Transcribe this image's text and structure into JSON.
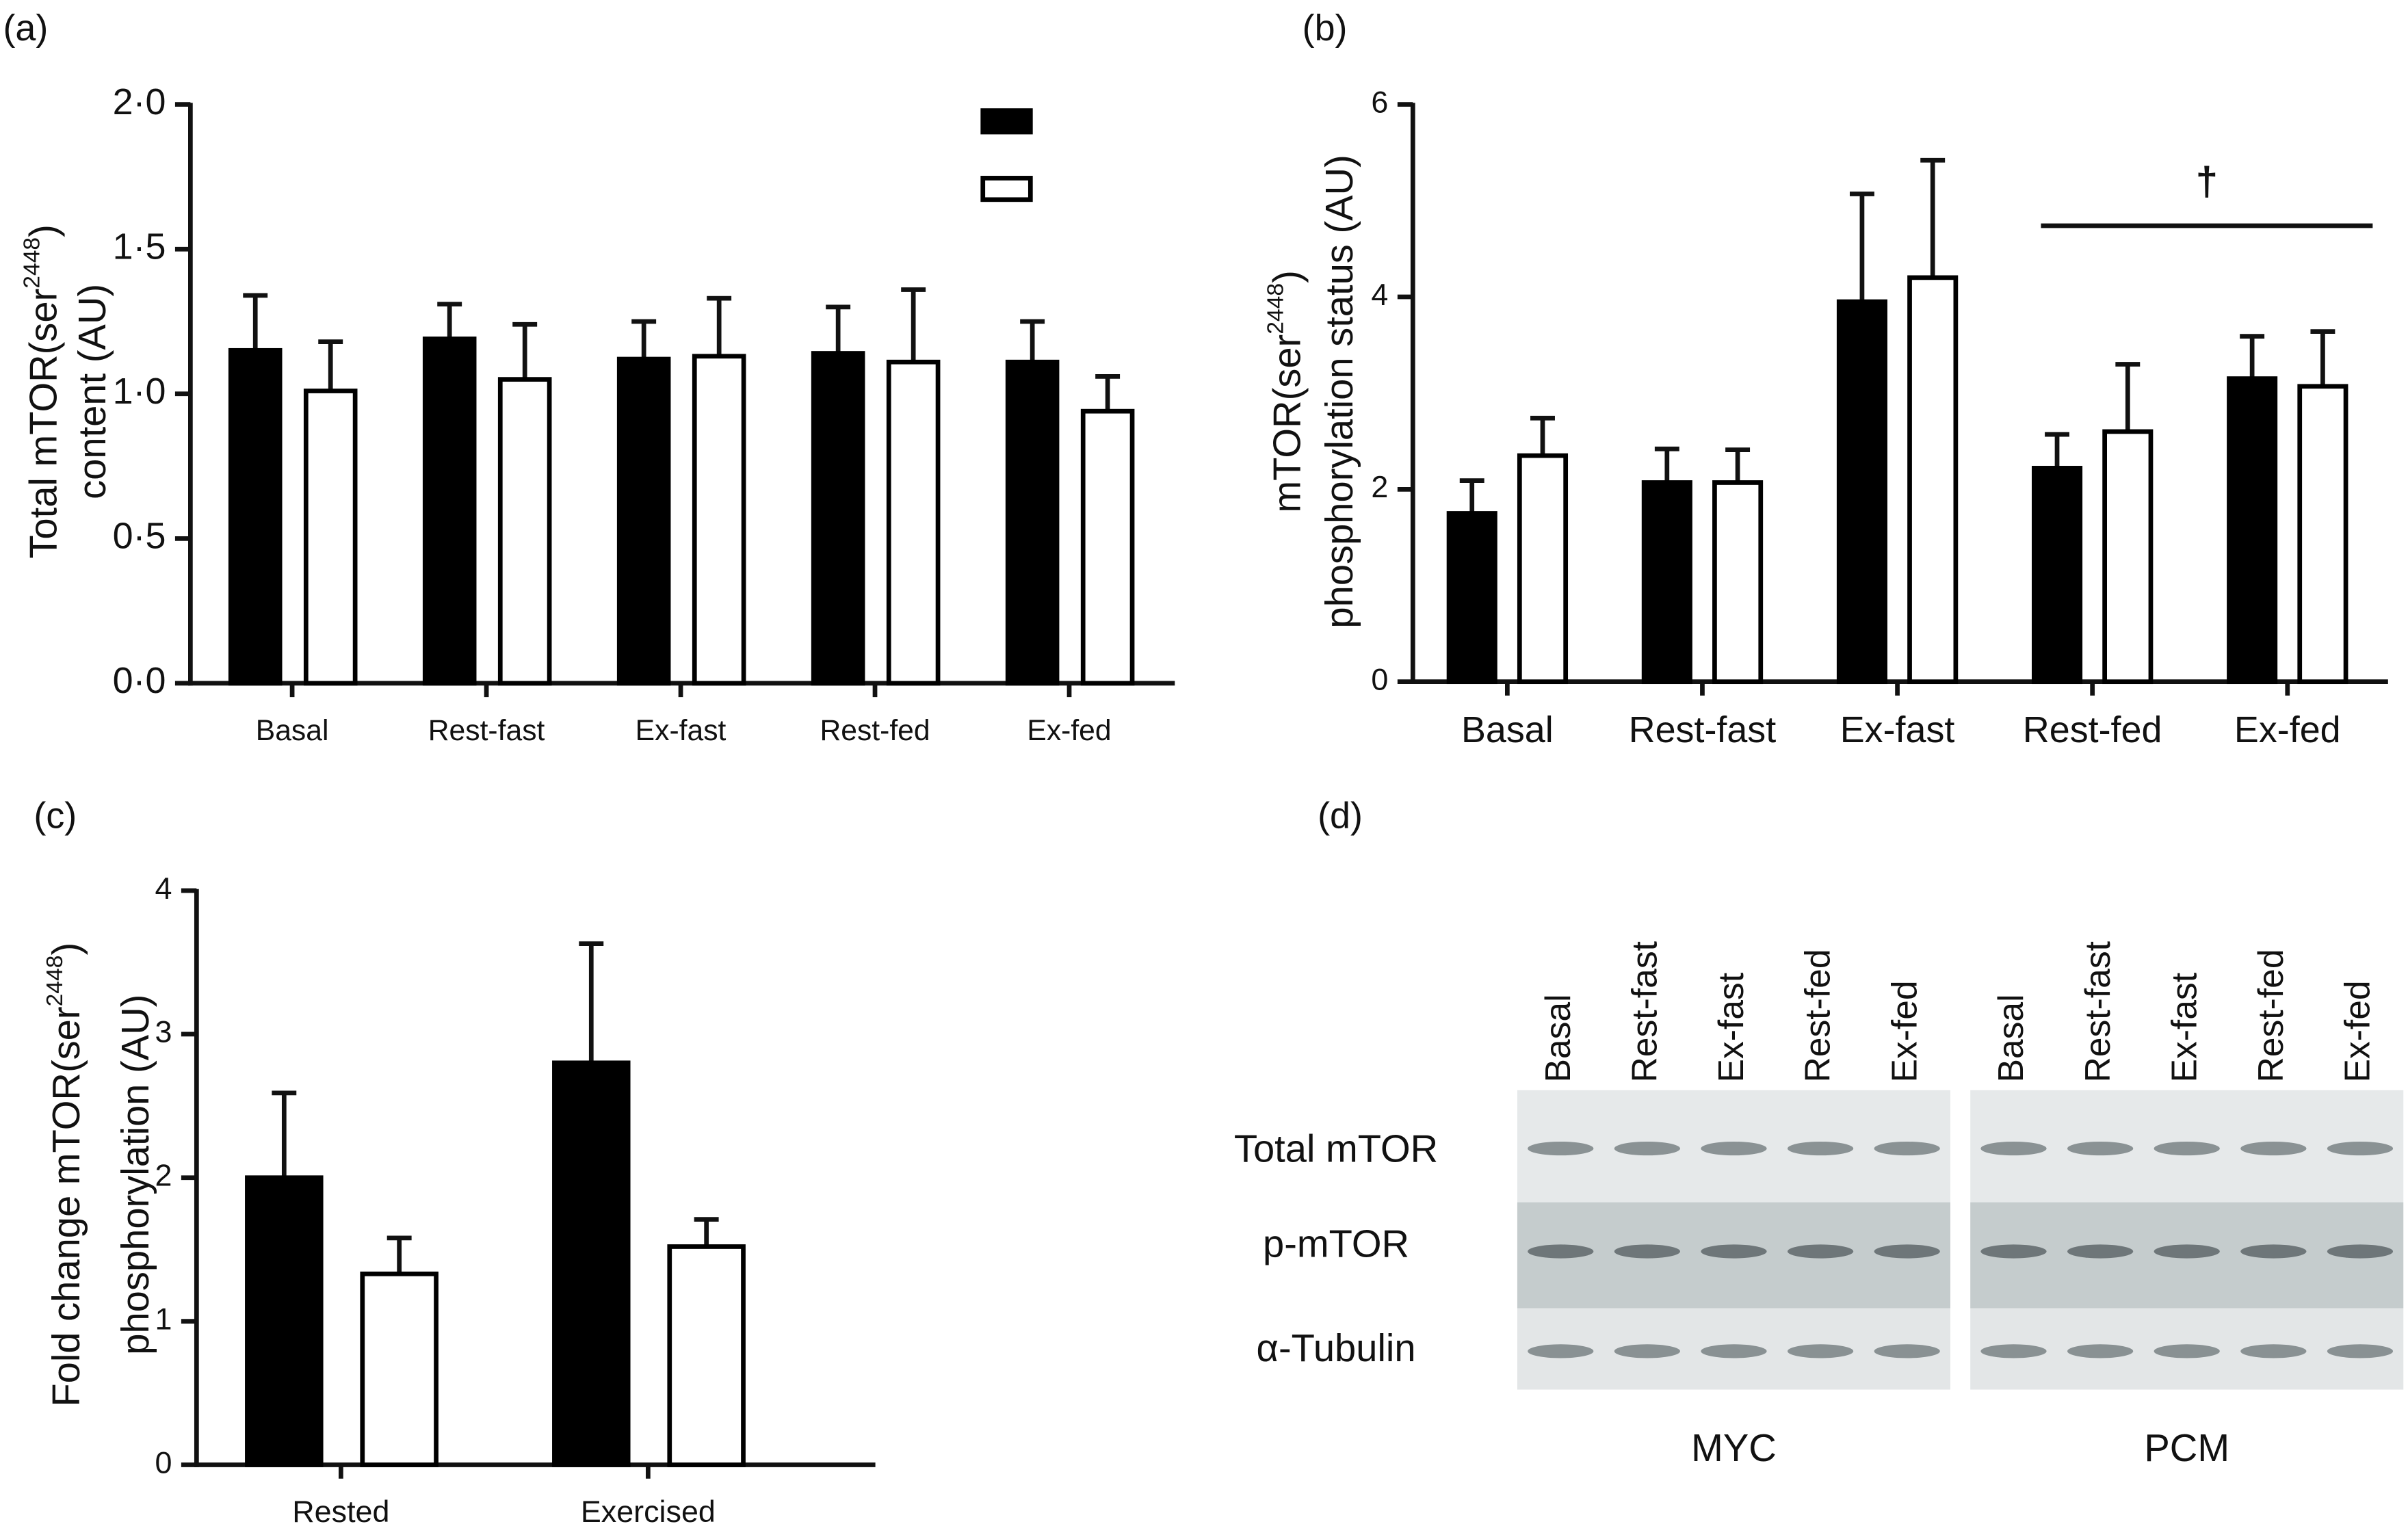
{
  "chart_data": [
    {
      "type": "bar",
      "panel": "(a)",
      "ylabel": {
        "line1": [
          "Total mTOR(ser",
          "2448",
          ")"
        ],
        "line2": "content (AU)"
      },
      "categories": [
        "Basal",
        "Rest-fast",
        "Ex-fast",
        "Rest-fed",
        "Ex-fed"
      ],
      "series": [
        {
          "color": "#000000",
          "values": [
            1.15,
            1.19,
            1.12,
            1.14,
            1.11
          ],
          "errors": [
            0.19,
            0.12,
            0.13,
            0.16,
            0.14
          ]
        },
        {
          "color": "#ffffff",
          "values": [
            1.01,
            1.05,
            1.13,
            1.11,
            0.94
          ],
          "errors": [
            0.17,
            0.19,
            0.2,
            0.25,
            0.12
          ]
        }
      ],
      "ylim": [
        0,
        2
      ],
      "yticks": [
        {
          "value": 0,
          "label": "0·0"
        },
        {
          "value": 0.5,
          "label": "0·5"
        },
        {
          "value": 1,
          "label": "1·0"
        },
        {
          "value": 1.5,
          "label": "1·5"
        },
        {
          "value": 2,
          "label": "2·0"
        }
      ],
      "legend": "top-right"
    },
    {
      "type": "bar",
      "panel": "(b)",
      "ylabel": {
        "line1": [
          "mTOR(ser",
          "2448",
          ")"
        ],
        "line2": "phosphorylation status (AU)"
      },
      "categories": [
        "Basal",
        "Rest-fast",
        "Ex-fast",
        "Rest-fed",
        "Ex-fed"
      ],
      "series": [
        {
          "color": "#000000",
          "values": [
            1.75,
            2.07,
            3.95,
            2.22,
            3.15
          ],
          "errors": [
            0.34,
            0.35,
            1.12,
            0.35,
            0.44
          ]
        },
        {
          "color": "#ffffff",
          "values": [
            2.35,
            2.07,
            4.2,
            2.6,
            3.07
          ],
          "errors": [
            0.39,
            0.34,
            1.22,
            0.7,
            0.57
          ]
        }
      ],
      "ylim": [
        0,
        6
      ],
      "yticks": [
        0,
        2,
        4,
        6
      ],
      "annotation": {
        "text": "†",
        "from": "Rest-fed",
        "to": "Ex-fed"
      }
    },
    {
      "type": "bar",
      "panel": "(c)",
      "ylabel": {
        "line1": [
          "Fold change mTOR(ser",
          "2448",
          ")"
        ],
        "line2": "phosphorylation (AU)"
      },
      "categories": [
        "Rested",
        "Exercised"
      ],
      "series": [
        {
          "color": "#000000",
          "values": [
            2.0,
            2.8
          ],
          "errors": [
            0.59,
            0.83
          ]
        },
        {
          "color": "#ffffff",
          "values": [
            1.33,
            1.52
          ],
          "errors": [
            0.25,
            0.19
          ]
        }
      ],
      "ylim": [
        0,
        4
      ],
      "yticks": [
        0,
        1,
        2,
        3,
        4
      ]
    }
  ],
  "blot": {
    "panel": "(d)",
    "lanes": [
      "Basal",
      "Rest-fast",
      "Ex-fast",
      "Rest-fed",
      "Ex-fed"
    ],
    "rows": [
      "Total mTOR",
      "p-mTOR",
      "α-Tubulin"
    ],
    "groups": [
      "MYC",
      "PCM"
    ]
  }
}
